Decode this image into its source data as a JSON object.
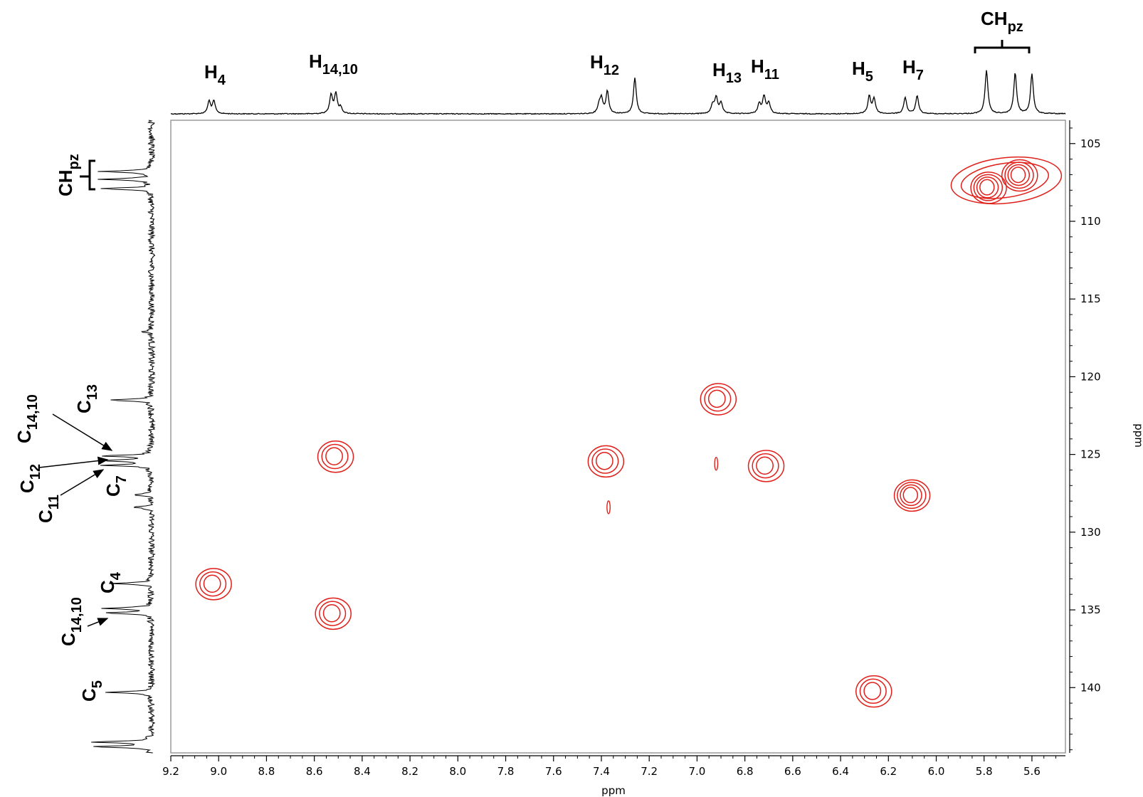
{
  "chart_data": {
    "type": "heatmap",
    "title": "",
    "xlabel": "ppm",
    "ylabel": "ppm",
    "xlim": [
      9.2,
      5.46
    ],
    "ylim": [
      103.5,
      144.2
    ],
    "x_ticks": [
      "9.2",
      "9.0",
      "8.8",
      "8.6",
      "8.4",
      "8.2",
      "8.0",
      "7.8",
      "7.6",
      "7.4",
      "7.2",
      "7.0",
      "6.8",
      "6.6",
      "6.4",
      "6.2",
      "6.0",
      "5.8",
      "5.6"
    ],
    "y_ticks": [
      "105",
      "110",
      "115",
      "120",
      "125",
      "130",
      "135",
      "140"
    ],
    "contour_color": "#e0201b",
    "cross_peaks": [
      {
        "h": 9.03,
        "c": 133.3,
        "levels": 3
      },
      {
        "h": 8.52,
        "c": 125.1,
        "levels": 3
      },
      {
        "h": 8.53,
        "c": 135.2,
        "levels": 3
      },
      {
        "h": 7.39,
        "c": 125.4,
        "levels": 3
      },
      {
        "h": 7.37,
        "c": 128.4,
        "levels": 1,
        "small": true
      },
      {
        "h": 6.92,
        "c": 121.4,
        "levels": 3
      },
      {
        "h": 6.92,
        "c": 125.6,
        "levels": 1,
        "small": true
      },
      {
        "h": 6.72,
        "c": 125.7,
        "levels": 3
      },
      {
        "h": 6.11,
        "c": 127.6,
        "levels": 4
      },
      {
        "h": 6.27,
        "c": 140.2,
        "levels": 3
      },
      {
        "h": 5.79,
        "c": 107.8,
        "levels": 4
      },
      {
        "h": 5.66,
        "c": 107.0,
        "levels": 4
      }
    ],
    "top_spectrum_peaks": [
      {
        "ppm": 9.04,
        "h": 0.25
      },
      {
        "ppm": 9.02,
        "h": 0.25
      },
      {
        "ppm": 8.53,
        "h": 0.38
      },
      {
        "ppm": 8.51,
        "h": 0.4
      },
      {
        "ppm": 8.49,
        "h": 0.12
      },
      {
        "ppm": 7.4,
        "h": 0.3
      },
      {
        "ppm": 7.375,
        "h": 0.45
      },
      {
        "ppm": 7.41,
        "h": 0.15
      },
      {
        "ppm": 7.26,
        "h": 0.72
      },
      {
        "ppm": 6.92,
        "h": 0.32
      },
      {
        "ppm": 6.9,
        "h": 0.22
      },
      {
        "ppm": 6.935,
        "h": 0.18
      },
      {
        "ppm": 6.72,
        "h": 0.35
      },
      {
        "ppm": 6.7,
        "h": 0.22
      },
      {
        "ppm": 6.74,
        "h": 0.2
      },
      {
        "ppm": 6.28,
        "h": 0.35
      },
      {
        "ppm": 6.26,
        "h": 0.3
      },
      {
        "ppm": 6.13,
        "h": 0.33
      },
      {
        "ppm": 6.08,
        "h": 0.36
      },
      {
        "ppm": 5.79,
        "h": 0.88
      },
      {
        "ppm": 5.67,
        "h": 0.82
      },
      {
        "ppm": 5.6,
        "h": 0.8
      }
    ],
    "side_spectrum_peaks": [
      {
        "ppm": 106.8,
        "h": 0.9
      },
      {
        "ppm": 107.3,
        "h": 0.9
      },
      {
        "ppm": 107.9,
        "h": 0.9
      },
      {
        "ppm": 117.1,
        "h": 0.15
      },
      {
        "ppm": 121.5,
        "h": 0.75
      },
      {
        "ppm": 125.1,
        "h": 0.85
      },
      {
        "ppm": 125.4,
        "h": 0.85
      },
      {
        "ppm": 125.7,
        "h": 0.85
      },
      {
        "ppm": 127.6,
        "h": 0.3
      },
      {
        "ppm": 128.4,
        "h": 0.35
      },
      {
        "ppm": 133.3,
        "h": 0.7
      },
      {
        "ppm": 134.9,
        "h": 0.8
      },
      {
        "ppm": 135.2,
        "h": 0.8
      },
      {
        "ppm": 140.3,
        "h": 0.8
      },
      {
        "ppm": 143.5,
        "h": 1.0
      },
      {
        "ppm": 143.8,
        "h": 1.0
      }
    ],
    "top_labels": [
      {
        "main": "H",
        "sub": "4"
      },
      {
        "main": "H",
        "sub": "14,10"
      },
      {
        "main": "H",
        "sub": "12"
      },
      {
        "main": "H",
        "sub": "13"
      },
      {
        "main": "H",
        "sub": "11"
      },
      {
        "main": "H",
        "sub": "5"
      },
      {
        "main": "H",
        "sub": "7"
      },
      {
        "main": "CH",
        "sub": "pz"
      }
    ],
    "side_labels": [
      {
        "main": "CH",
        "sub": "pz"
      },
      {
        "main": "C",
        "sub": "13"
      },
      {
        "main": "C",
        "sub": "14,10"
      },
      {
        "main": "C",
        "sub": "12"
      },
      {
        "main": "C",
        "sub": "11"
      },
      {
        "main": "C",
        "sub": "7"
      },
      {
        "main": "C",
        "sub": "4"
      },
      {
        "main": "C",
        "sub": "14,10"
      },
      {
        "main": "C",
        "sub": "5"
      }
    ]
  }
}
